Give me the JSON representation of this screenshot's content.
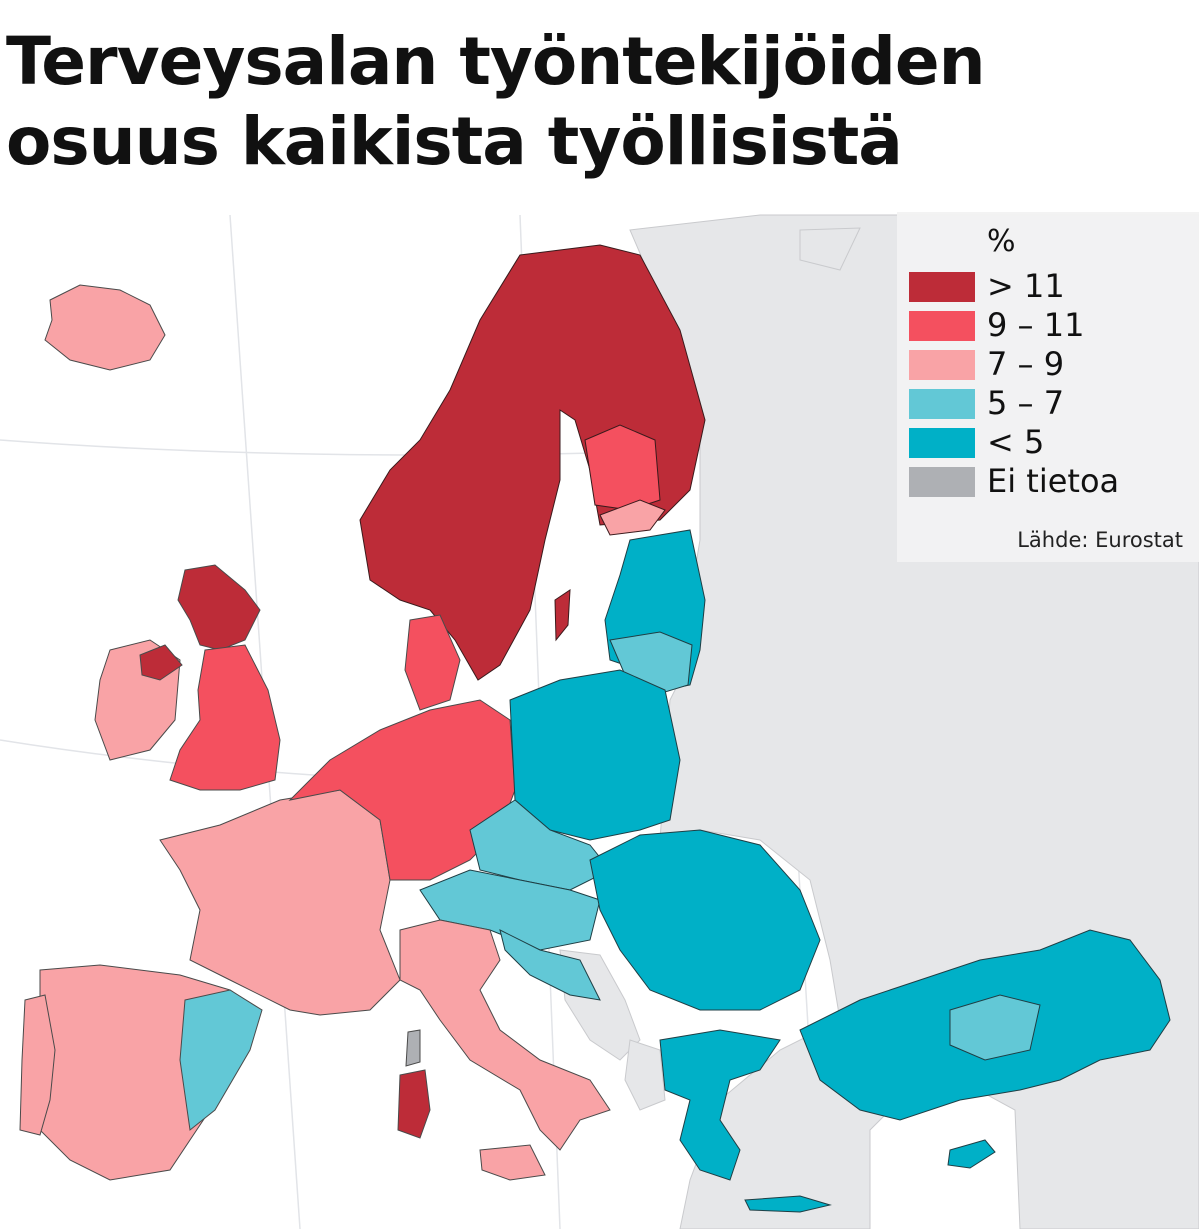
{
  "title": {
    "line1": "Terveysalan työntekijöiden",
    "line2": "osuus kaikista työllisistä"
  },
  "legend": {
    "unit": "%",
    "items": [
      {
        "label": "> 11",
        "color": "#bd2c38"
      },
      {
        "label": "9 – 11",
        "color": "#f4505f"
      },
      {
        "label": "7 – 9",
        "color": "#f9a3a6"
      },
      {
        "label": "5 – 7",
        "color": "#62c8d6"
      },
      {
        "label": "< 5",
        "color": "#00b0c7"
      },
      {
        "label": "Ei tietoa",
        "color": "#aeb0b4"
      }
    ],
    "source": "Lähde: Eurostat"
  },
  "colors": {
    "sea": "#ffffff",
    "non_eu_land": "#e6e7e9",
    "border": "#4a4a4a"
  }
}
